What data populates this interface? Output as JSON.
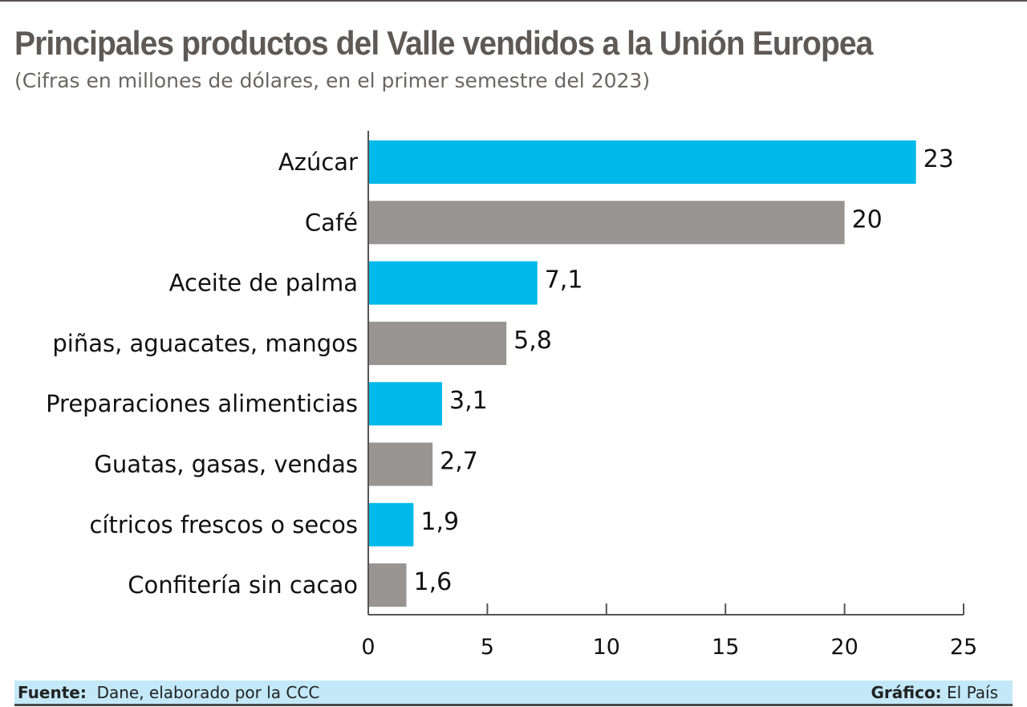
{
  "chart_data": {
    "type": "bar",
    "orientation": "horizontal",
    "title": "Principales productos del Valle vendidos a la Unión Europea",
    "subtitle": "(Cifras en millones de dólares, en el primer semestre del 2023)",
    "categories": [
      "Azúcar",
      "Café",
      "Aceite de palma",
      "piñas, aguacates, mangos",
      "Preparaciones alimenticias",
      "Guatas, gasas, vendas",
      "cítricos frescos o secos",
      "Confitería sin cacao"
    ],
    "values": [
      23,
      20,
      7.1,
      5.8,
      3.1,
      2.7,
      1.9,
      1.6
    ],
    "value_labels": [
      "23",
      "20",
      "7,1",
      "5,8",
      "3,1",
      "2,7",
      "1,9",
      "1,6"
    ],
    "bar_colors": [
      "#00b9eb",
      "#979491",
      "#00b9eb",
      "#979491",
      "#00b9eb",
      "#979491",
      "#00b9eb",
      "#979491"
    ],
    "xlim": [
      0,
      25
    ],
    "xticks": [
      "0",
      "5",
      "10",
      "15",
      "20",
      "25"
    ],
    "grid": false
  },
  "footer": {
    "source_label": "Fuente:",
    "source": "Dane, elaborado por la CCC",
    "credit_label": "Gráfico:",
    "credit": "El País"
  }
}
